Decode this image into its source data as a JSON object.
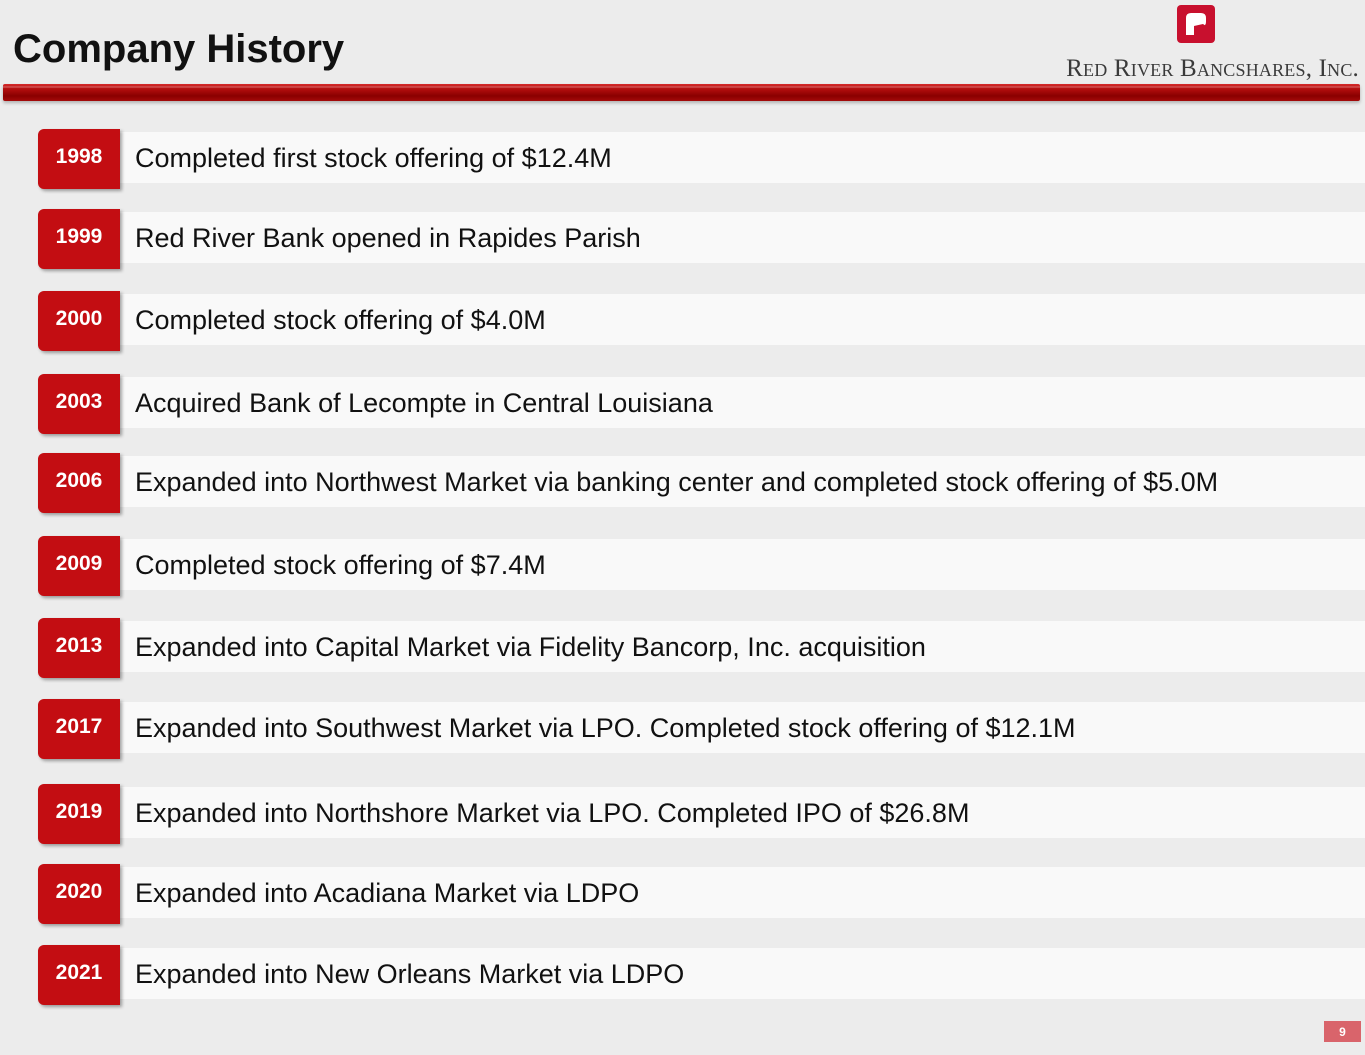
{
  "header": {
    "title": "Company History",
    "company_name": "Red River Bancshares, Inc.",
    "logo_icon": "red-river-logo-icon"
  },
  "timeline": [
    {
      "year": "1998",
      "event": "Completed first stock offering of $12.4M"
    },
    {
      "year": "1999",
      "event": "Red River Bank opened in Rapides Parish"
    },
    {
      "year": "2000",
      "event": "Completed stock offering of $4.0M"
    },
    {
      "year": "2003",
      "event": "Acquired Bank of Lecompte in Central Louisiana"
    },
    {
      "year": "2006",
      "event": "Expanded into Northwest Market via banking center and completed stock offering of $5.0M"
    },
    {
      "year": "2009",
      "event": "Completed stock offering of $7.4M"
    },
    {
      "year": "2013",
      "event": "Expanded into Capital Market via Fidelity Bancorp, Inc. acquisition"
    },
    {
      "year": "2017",
      "event": "Expanded into Southwest Market via LPO. Completed stock offering of $12.1M"
    },
    {
      "year": "2019",
      "event": "Expanded into Northshore Market via LPO. Completed IPO of $26.8M"
    },
    {
      "year": "2020",
      "event": "Expanded into Acadiana Market via LDPO"
    },
    {
      "year": "2021",
      "event": "Expanded into New Orleans Market via LDPO"
    }
  ],
  "footer": {
    "page_number": "9"
  },
  "colors": {
    "accent_red": "#c30d12",
    "background": "#ececec"
  }
}
